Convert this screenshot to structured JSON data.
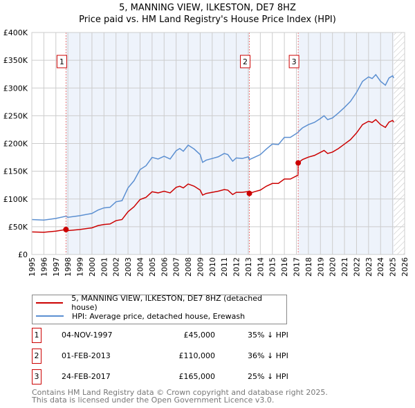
{
  "title": "5, MANNING VIEW, ILKESTON, DE7 8HZ",
  "subtitle": "Price paid vs. HM Land Registry's House Price Index (HPI)",
  "colors": {
    "property": "#cc0000",
    "hpi": "#5b8fd1",
    "shade": "#eef3fb"
  },
  "chart_data": {
    "type": "line",
    "xlim": [
      1995,
      2026
    ],
    "ylim": [
      0,
      400000
    ],
    "x_ticks": [
      "1995",
      "1996",
      "1997",
      "1998",
      "1999",
      "2000",
      "2001",
      "2002",
      "2003",
      "2004",
      "2005",
      "2006",
      "2007",
      "2008",
      "2009",
      "2010",
      "2011",
      "2012",
      "2013",
      "2014",
      "2015",
      "2016",
      "2017",
      "2018",
      "2019",
      "2020",
      "2021",
      "2022",
      "2023",
      "2024",
      "2025",
      "2026"
    ],
    "y_ticks": [
      "£0",
      "£50K",
      "£100K",
      "£150K",
      "£200K",
      "£250K",
      "£300K",
      "£350K",
      "£400K"
    ],
    "x": [
      1995,
      1996,
      1997,
      1997.84,
      1998,
      1999,
      2000,
      2000.5,
      2001,
      2001.5,
      2002,
      2002.5,
      2003,
      2003.5,
      2004,
      2004.5,
      2005,
      2005.5,
      2006,
      2006.5,
      2007,
      2007.3,
      2007.6,
      2008,
      2008.5,
      2009,
      2009.2,
      2009.5,
      2010,
      2010.5,
      2011,
      2011.3,
      2011.7,
      2012,
      2012.5,
      2013,
      2013.09,
      2013.5,
      2014,
      2014.5,
      2015,
      2015.5,
      2016,
      2016.5,
      2017.14,
      2017.15,
      2017.5,
      2018,
      2018.5,
      2019,
      2019.3,
      2019.6,
      2020,
      2020.5,
      2021,
      2021.5,
      2022,
      2022.5,
      2023,
      2023.3,
      2023.6,
      2024,
      2024.4,
      2024.7,
      2025,
      2025.1
    ],
    "series": [
      {
        "name": "5, MANNING VIEW, ILKESTON, DE7 8HZ (detached house)",
        "values": [
          40600,
          40000,
          42000,
          45000,
          43000,
          45000,
          48000,
          52000,
          54000,
          55000,
          61000,
          63000,
          77000,
          86000,
          99000,
          103000,
          113000,
          111000,
          114000,
          111000,
          121000,
          123000,
          120000,
          127000,
          123000,
          116000,
          107000,
          110000,
          112000,
          114000,
          117000,
          116000,
          108000,
          112000,
          112000,
          113500,
          110000,
          113000,
          116000,
          123000,
          128000,
          128000,
          136000,
          136000,
          143000,
          165000,
          171000,
          175500,
          178500,
          184000,
          187500,
          182000,
          184500,
          191000,
          199000,
          207000,
          219000,
          234000,
          240000,
          238000,
          243000,
          234000,
          229000,
          238500,
          241500,
          238500
        ]
      },
      {
        "name": "HPI: Average price, detached house, Erewash",
        "values": [
          63000,
          62000,
          65000,
          69000,
          67000,
          70000,
          74000,
          80000,
          84000,
          85000,
          95000,
          97000,
          120000,
          133000,
          153000,
          160000,
          175000,
          172000,
          177000,
          172000,
          187000,
          191000,
          186000,
          197000,
          190000,
          180000,
          166000,
          170000,
          173000,
          176000,
          182000,
          180000,
          168000,
          174000,
          173000,
          176000,
          171000,
          175000,
          180000,
          190000,
          199000,
          198000,
          211000,
          211000,
          220000,
          221000,
          228000,
          234000,
          238000,
          245000,
          250000,
          243000,
          246000,
          255000,
          265000,
          276000,
          292000,
          312000,
          320000,
          317000,
          324000,
          312000,
          305000,
          318000,
          322000,
          318000
        ]
      }
    ],
    "sales": [
      {
        "label": "1",
        "x": 1997.84,
        "y": 45000
      },
      {
        "label": "2",
        "x": 2013.09,
        "y": 110000
      },
      {
        "label": "3",
        "x": 2017.15,
        "y": 165000
      }
    ]
  },
  "legend": {
    "property": "5, MANNING VIEW, ILKESTON, DE7 8HZ (detached house)",
    "hpi": "HPI: Average price, detached house, Erewash"
  },
  "transactions": [
    {
      "num": "1",
      "date": "04-NOV-1997",
      "price": "£45,000",
      "hpi": "35% ↓ HPI"
    },
    {
      "num": "2",
      "date": "01-FEB-2013",
      "price": "£110,000",
      "hpi": "36% ↓ HPI"
    },
    {
      "num": "3",
      "date": "24-FEB-2017",
      "price": "£165,000",
      "hpi": "25% ↓ HPI"
    }
  ],
  "footer": [
    "Contains HM Land Registry data © Crown copyright and database right 2025.",
    "This data is licensed under the Open Government Licence v3.0."
  ]
}
